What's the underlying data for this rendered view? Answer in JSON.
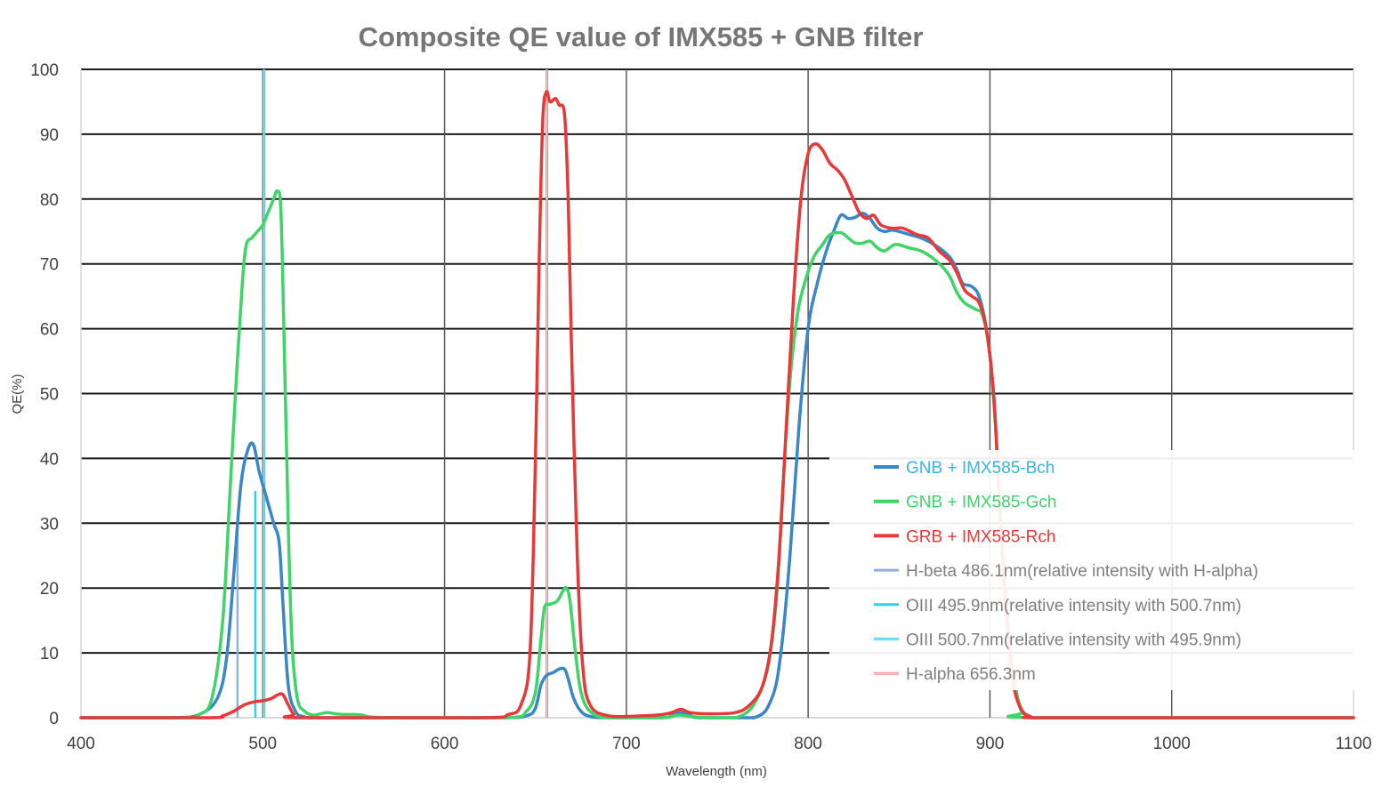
{
  "chart_data": {
    "type": "line",
    "title": "Composite QE value of IMX585 + GNB filter",
    "xlabel": "Wavelength (nm)",
    "ylabel": "QE(%)",
    "xlim": [
      400,
      1100
    ],
    "ylim": [
      0,
      100
    ],
    "xticks": [
      400,
      500,
      600,
      700,
      800,
      900,
      1000,
      1100
    ],
    "yticks": [
      0,
      10,
      20,
      30,
      40,
      50,
      60,
      70,
      80,
      90,
      100
    ],
    "grid": true,
    "legend_position": "bottom-right",
    "series": [
      {
        "name": "GNB + IMX585-Bch",
        "kind": "curve",
        "color": "#3a87c8",
        "legend_text_color": "#37b4e0",
        "points": [
          [
            400,
            0
          ],
          [
            450,
            0
          ],
          [
            465,
            0.5
          ],
          [
            475,
            3
          ],
          [
            480,
            9
          ],
          [
            484,
            22
          ],
          [
            488,
            36
          ],
          [
            492,
            41.5
          ],
          [
            495,
            42
          ],
          [
            498,
            38
          ],
          [
            502,
            34
          ],
          [
            506,
            30
          ],
          [
            509,
            27
          ],
          [
            511,
            18
          ],
          [
            514,
            5
          ],
          [
            518,
            1
          ],
          [
            522,
            0.2
          ],
          [
            530,
            0
          ],
          [
            560,
            0
          ],
          [
            630,
            0
          ],
          [
            645,
            0.3
          ],
          [
            650,
            1.5
          ],
          [
            653,
            5
          ],
          [
            656,
            6.5
          ],
          [
            660,
            7
          ],
          [
            663,
            7.5
          ],
          [
            666,
            7.5
          ],
          [
            668,
            6
          ],
          [
            671,
            3
          ],
          [
            675,
            1
          ],
          [
            680,
            0.2
          ],
          [
            690,
            0
          ],
          [
            720,
            0
          ],
          [
            725,
            0.5
          ],
          [
            730,
            0.8
          ],
          [
            735,
            0.5
          ],
          [
            740,
            0
          ],
          [
            770,
            0
          ],
          [
            780,
            3
          ],
          [
            785,
            10
          ],
          [
            790,
            25
          ],
          [
            795,
            45
          ],
          [
            800,
            60
          ],
          [
            805,
            67
          ],
          [
            810,
            72
          ],
          [
            814,
            75
          ],
          [
            818,
            77.5
          ],
          [
            822,
            77
          ],
          [
            826,
            77.2
          ],
          [
            830,
            77.8
          ],
          [
            834,
            77
          ],
          [
            838,
            75.5
          ],
          [
            842,
            75
          ],
          [
            846,
            75.2
          ],
          [
            850,
            75
          ],
          [
            856,
            74.5
          ],
          [
            862,
            74
          ],
          [
            866,
            73.5
          ],
          [
            872,
            72.5
          ],
          [
            878,
            71
          ],
          [
            882,
            69
          ],
          [
            885,
            67
          ],
          [
            890,
            66.5
          ],
          [
            894,
            65
          ],
          [
            898,
            60
          ],
          [
            902,
            50
          ],
          [
            905,
            35
          ],
          [
            908,
            20
          ],
          [
            912,
            8
          ],
          [
            916,
            2
          ],
          [
            922,
            0.2
          ],
          [
            940,
            0
          ],
          [
            1100,
            0
          ]
        ]
      },
      {
        "name": "GNB + IMX585-Gch",
        "kind": "curve",
        "color": "#3fd468",
        "legend_text_color": "#3fd468",
        "points": [
          [
            400,
            0
          ],
          [
            455,
            0
          ],
          [
            465,
            0.5
          ],
          [
            472,
            3
          ],
          [
            478,
            15
          ],
          [
            482,
            35
          ],
          [
            486,
            55
          ],
          [
            489,
            68
          ],
          [
            491,
            73
          ],
          [
            494,
            74
          ],
          [
            497,
            75
          ],
          [
            500,
            76
          ],
          [
            503,
            78
          ],
          [
            506,
            80
          ],
          [
            508,
            81.2
          ],
          [
            510,
            78
          ],
          [
            512,
            55
          ],
          [
            514,
            30
          ],
          [
            516,
            12
          ],
          [
            519,
            3
          ],
          [
            523,
            1
          ],
          [
            528,
            0.4
          ],
          [
            535,
            0.8
          ],
          [
            540,
            0.6
          ],
          [
            545,
            0.5
          ],
          [
            550,
            0.5
          ],
          [
            555,
            0.4
          ],
          [
            560,
            0.1
          ],
          [
            580,
            0
          ],
          [
            635,
            0
          ],
          [
            645,
            1
          ],
          [
            650,
            4
          ],
          [
            653,
            12
          ],
          [
            655,
            17
          ],
          [
            658,
            17.5
          ],
          [
            662,
            18
          ],
          [
            665,
            19.5
          ],
          [
            667,
            20
          ],
          [
            669,
            18
          ],
          [
            672,
            10
          ],
          [
            675,
            4
          ],
          [
            680,
            1
          ],
          [
            690,
            0
          ],
          [
            720,
            0
          ],
          [
            728,
            0.4
          ],
          [
            735,
            0.2
          ],
          [
            745,
            0
          ],
          [
            760,
            0
          ],
          [
            770,
            2
          ],
          [
            778,
            8
          ],
          [
            783,
            20
          ],
          [
            786,
            35
          ],
          [
            790,
            52
          ],
          [
            794,
            62
          ],
          [
            798,
            67
          ],
          [
            803,
            71
          ],
          [
            808,
            73
          ],
          [
            812,
            74.5
          ],
          [
            818,
            74.8
          ],
          [
            822,
            74
          ],
          [
            826,
            73.2
          ],
          [
            830,
            73.2
          ],
          [
            834,
            73.5
          ],
          [
            838,
            72.5
          ],
          [
            842,
            72
          ],
          [
            848,
            73
          ],
          [
            855,
            72.5
          ],
          [
            862,
            72
          ],
          [
            868,
            71
          ],
          [
            874,
            69.5
          ],
          [
            878,
            68
          ],
          [
            882,
            65.5
          ],
          [
            886,
            64
          ],
          [
            892,
            63
          ],
          [
            896,
            62
          ],
          [
            900,
            56
          ],
          [
            903,
            45
          ],
          [
            906,
            30
          ],
          [
            910,
            15
          ],
          [
            914,
            5
          ],
          [
            918,
            1
          ],
          [
            925,
            0
          ],
          [
            1100,
            0
          ]
        ]
      },
      {
        "name": "GRB + IMX585-Rch",
        "kind": "curve",
        "color": "#e83838",
        "legend_text_color": "#e83838",
        "points": [
          [
            400,
            0
          ],
          [
            470,
            0
          ],
          [
            478,
            0.3
          ],
          [
            484,
            1
          ],
          [
            490,
            2
          ],
          [
            496,
            2.5
          ],
          [
            500,
            2.6
          ],
          [
            505,
            3
          ],
          [
            508,
            3.5
          ],
          [
            511,
            3.6
          ],
          [
            514,
            2
          ],
          [
            517,
            0.5
          ],
          [
            520,
            0
          ],
          [
            620,
            0
          ],
          [
            635,
            0.5
          ],
          [
            642,
            2
          ],
          [
            647,
            10
          ],
          [
            650,
            40
          ],
          [
            652,
            70
          ],
          [
            654,
            92
          ],
          [
            656,
            96.5
          ],
          [
            658,
            95
          ],
          [
            661,
            95.5
          ],
          [
            663,
            94.5
          ],
          [
            666,
            93
          ],
          [
            668,
            80
          ],
          [
            670,
            55
          ],
          [
            673,
            25
          ],
          [
            676,
            8
          ],
          [
            680,
            2
          ],
          [
            690,
            0.3
          ],
          [
            710,
            0.3
          ],
          [
            720,
            0.5
          ],
          [
            725,
            0.8
          ],
          [
            730,
            1.3
          ],
          [
            735,
            0.8
          ],
          [
            745,
            0.6
          ],
          [
            760,
            0.8
          ],
          [
            768,
            2
          ],
          [
            775,
            5
          ],
          [
            780,
            12
          ],
          [
            784,
            25
          ],
          [
            788,
            45
          ],
          [
            792,
            65
          ],
          [
            796,
            80
          ],
          [
            800,
            87
          ],
          [
            804,
            88.5
          ],
          [
            808,
            87.5
          ],
          [
            812,
            85.5
          ],
          [
            816,
            84.5
          ],
          [
            820,
            83
          ],
          [
            824,
            80.5
          ],
          [
            828,
            78
          ],
          [
            832,
            77
          ],
          [
            836,
            77.5
          ],
          [
            840,
            76
          ],
          [
            846,
            75.5
          ],
          [
            852,
            75.5
          ],
          [
            860,
            74.5
          ],
          [
            866,
            74
          ],
          [
            872,
            72
          ],
          [
            878,
            70.5
          ],
          [
            882,
            68.5
          ],
          [
            886,
            66
          ],
          [
            890,
            65
          ],
          [
            894,
            64
          ],
          [
            898,
            60
          ],
          [
            902,
            50
          ],
          [
            905,
            35
          ],
          [
            908,
            20
          ],
          [
            912,
            7
          ],
          [
            916,
            2
          ],
          [
            922,
            0.2
          ],
          [
            935,
            0
          ],
          [
            1100,
            0
          ]
        ]
      },
      {
        "name": "H-beta 486.1nm(relative intensity with H-alpha)",
        "kind": "emission",
        "x": 486.1,
        "value": 30,
        "color": "#8cb4e0",
        "legend_text_color": "#7f7f7f"
      },
      {
        "name": "OIII 495.9nm(relative intensity with 500.7nm)",
        "kind": "emission",
        "x": 495.9,
        "value": 35,
        "color": "#24d4f0",
        "legend_text_color": "#7f7f7f"
      },
      {
        "name": "OIII 500.7nm(relative intensity with 495.9nm)",
        "kind": "emission",
        "x": 500.7,
        "value": 100,
        "color": "#24d4f0",
        "legend_text_color": "#7f7f7f"
      },
      {
        "name": "H-alpha 656.3nm",
        "kind": "emission",
        "x": 656.3,
        "value": 100,
        "color": "#f08a8a",
        "legend_text_color": "#7f7f7f"
      }
    ]
  }
}
